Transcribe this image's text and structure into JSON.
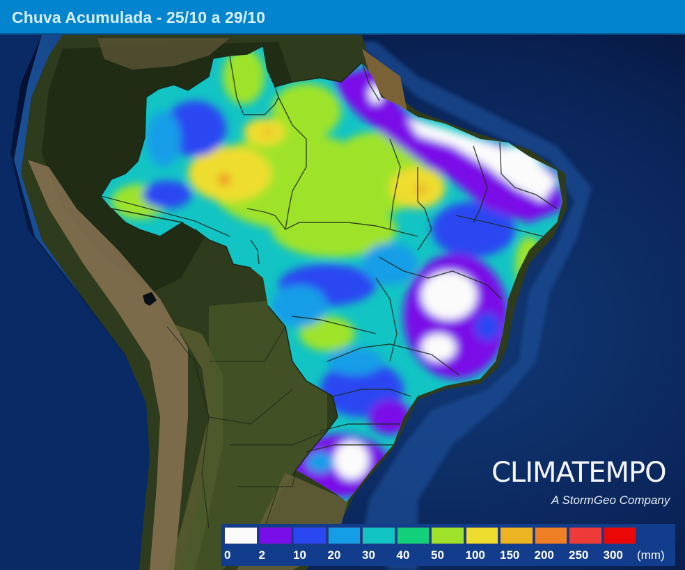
{
  "header": {
    "title": "Chuva Acumulada - 25/10 a 29/10",
    "background": "#0284cf"
  },
  "map": {
    "region": "Brazil / South America",
    "description": "Accumulated rainfall map over Brazil on satellite imagery with state borders",
    "highlights": [
      {
        "area": "Amazon north/west",
        "range": "10-100 mm"
      },
      {
        "area": "Northeast coast (Ceará, RN, PI)",
        "range": "0-2 mm"
      },
      {
        "area": "Minas Gerais / Bahia interior",
        "range": "0-2 mm"
      },
      {
        "area": "Rio Grande do Sul",
        "range": "0-10 mm"
      }
    ]
  },
  "logo": {
    "main": "CLIMATEMPO",
    "sub": "A StormGeo Company"
  },
  "legend": {
    "unit": "(mm)",
    "items": [
      {
        "label": "0",
        "color": "#fbfbfb"
      },
      {
        "label": "2",
        "color": "#7a0ee8"
      },
      {
        "label": "10",
        "color": "#2b47f2"
      },
      {
        "label": "20",
        "color": "#159ee8"
      },
      {
        "label": "30",
        "color": "#12c4c4"
      },
      {
        "label": "40",
        "color": "#12d07a"
      },
      {
        "label": "50",
        "color": "#9ee32a"
      },
      {
        "label": "100",
        "color": "#eedd2e"
      },
      {
        "label": "150",
        "color": "#ecb322"
      },
      {
        "label": "200",
        "color": "#ef7f24"
      },
      {
        "label": "250",
        "color": "#ef3a3a"
      },
      {
        "label": "300",
        "color": "#ec0707"
      }
    ]
  }
}
